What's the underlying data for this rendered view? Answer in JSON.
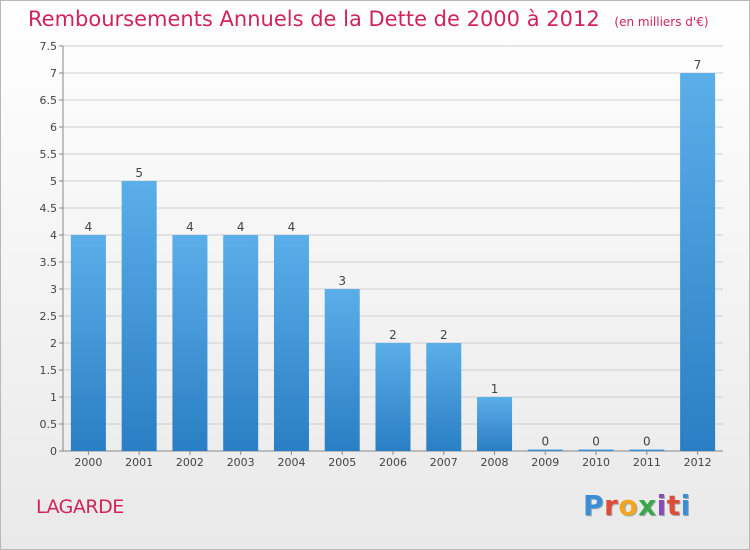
{
  "header": {
    "title": "Remboursements Annuels de la Dette de 2000 à 2012",
    "subtitle": "(en milliers d'€)"
  },
  "footer": {
    "municipality": "LAGARDE",
    "logo_text": "Proxiti"
  },
  "colors": {
    "title": "#d2245a",
    "bar_top": "#5aaee9",
    "bar_bottom": "#2a7fc4",
    "grid": "#cfcfcf"
  },
  "chart_data": {
    "type": "bar",
    "categories": [
      "2000",
      "2001",
      "2002",
      "2003",
      "2004",
      "2005",
      "2006",
      "2007",
      "2008",
      "2009",
      "2010",
      "2011",
      "2012"
    ],
    "values": [
      4,
      5,
      4,
      4,
      4,
      3,
      2,
      2,
      1,
      0,
      0,
      0,
      7
    ],
    "data_labels": [
      "4",
      "5",
      "4",
      "4",
      "4",
      "3",
      "2",
      "2",
      "1",
      "0",
      "0",
      "0",
      "7"
    ],
    "y_ticks": [
      "0",
      "0.5",
      "1",
      "1.5",
      "2",
      "2.5",
      "3",
      "3.5",
      "4",
      "4.5",
      "5",
      "5.5",
      "6",
      "6.5",
      "7",
      "7.5"
    ],
    "title": "Remboursements Annuels de la Dette de 2000 à 2012",
    "xlabel": "",
    "ylabel": "",
    "ylim": [
      0,
      7.5
    ],
    "grid": true,
    "legend": "none"
  }
}
